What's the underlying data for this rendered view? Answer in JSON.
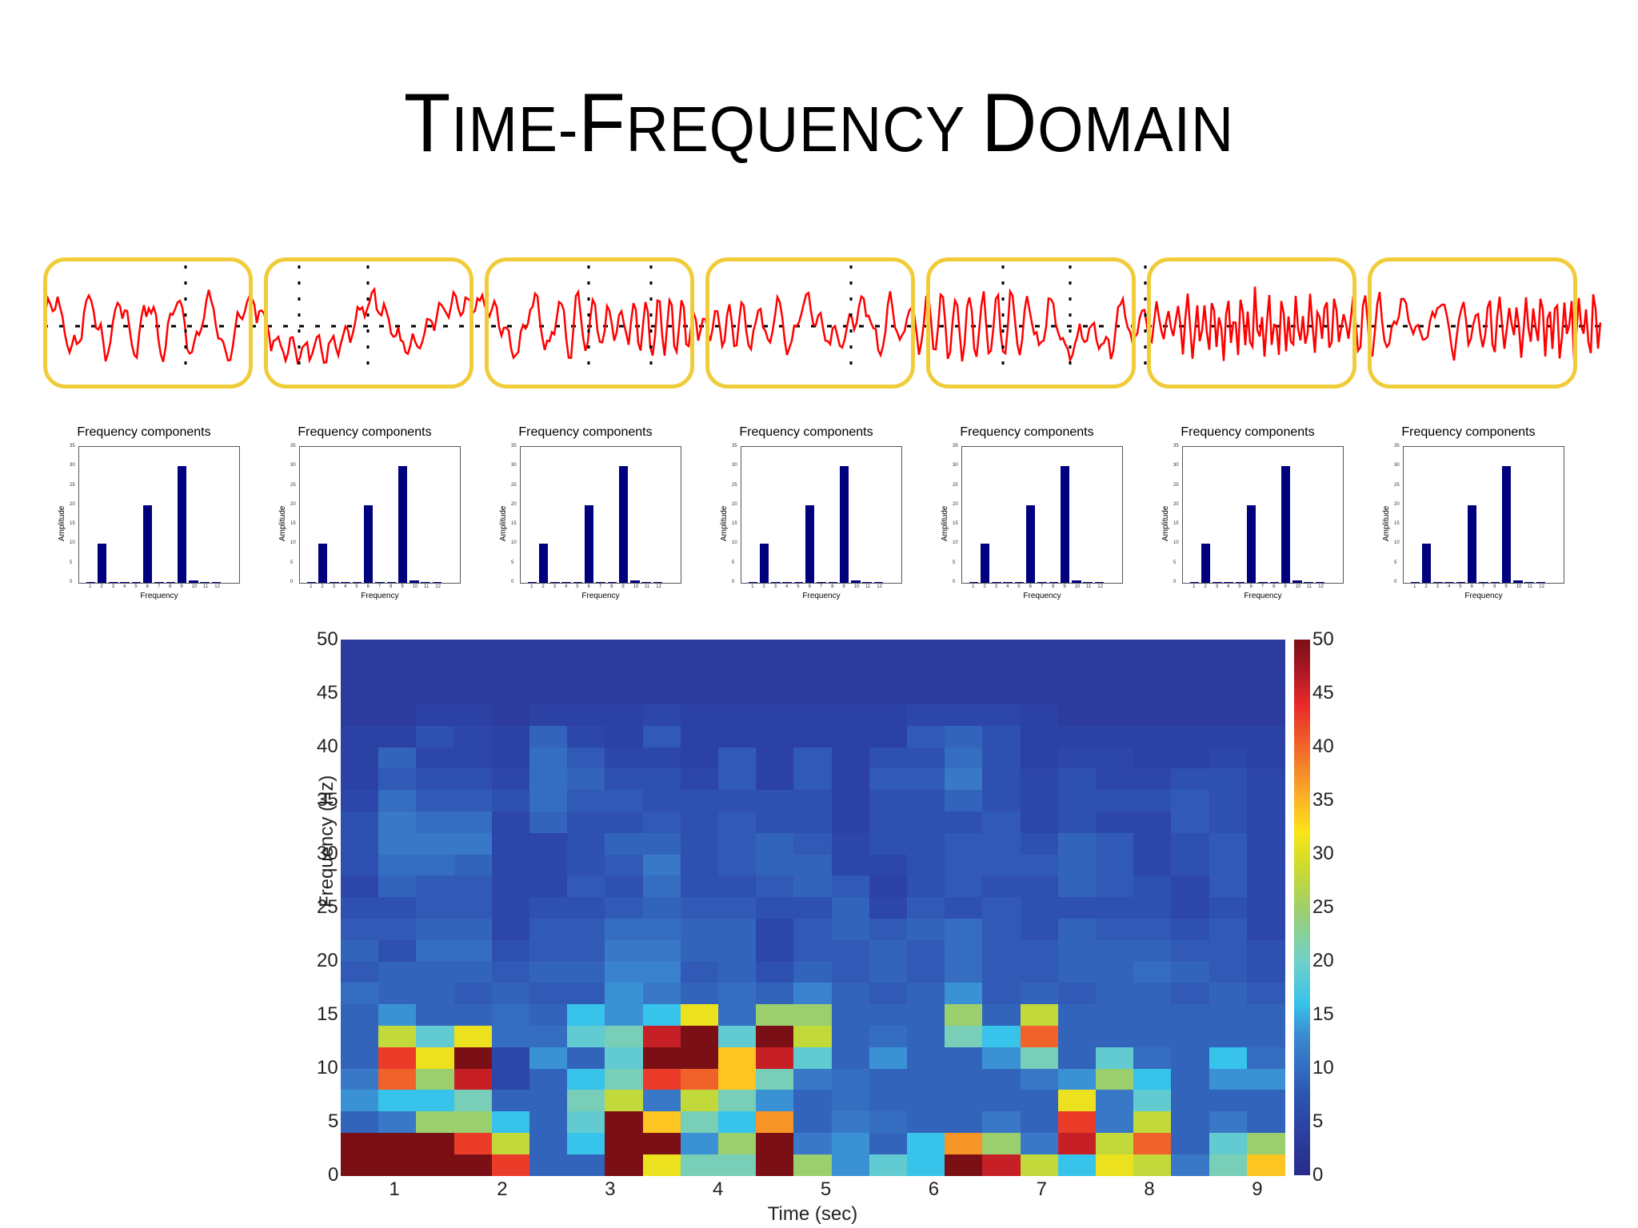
{
  "slide": {
    "title_parts": [
      {
        "text": "T",
        "size": "big"
      },
      {
        "text": "IME-",
        "size": "small"
      },
      {
        "text": "F",
        "size": "big"
      },
      {
        "text": "REQUENCY ",
        "size": "small"
      },
      {
        "text": "D",
        "size": "big"
      },
      {
        "text": "OMAIN",
        "size": "small"
      }
    ],
    "title": "Time-Frequency Domain",
    "window_count": 7,
    "box_color": "#f0cc3a",
    "signal_color": "#ff0000"
  },
  "chart_data": [
    {
      "type": "bar",
      "repeat": 7,
      "title": "Frequency components",
      "xlabel": "Frequency",
      "ylabel": "Amplitude",
      "categories": [
        "1",
        "2",
        "3",
        "4",
        "5",
        "6",
        "7",
        "8",
        "9",
        "10",
        "11",
        "12"
      ],
      "values": [
        0.1,
        10,
        0.1,
        0.2,
        0.3,
        20,
        0.1,
        0.3,
        30,
        0.6,
        0.3,
        0.2
      ],
      "ylim": [
        0,
        35
      ],
      "yticks": [
        0,
        5,
        10,
        15,
        20,
        25,
        30,
        35
      ],
      "bar_color": "#00007f"
    },
    {
      "type": "heatmap",
      "title": "",
      "xlabel": "Time (sec)",
      "ylabel": "Frequency (Hz)",
      "xlim": [
        0.5,
        9.25
      ],
      "ylim": [
        0,
        50
      ],
      "xticks": [
        1,
        2,
        3,
        4,
        5,
        6,
        7,
        8,
        9
      ],
      "yticks": [
        0,
        5,
        10,
        15,
        20,
        25,
        30,
        35,
        40,
        45,
        50
      ],
      "colorbar": {
        "min": 0,
        "max": 50,
        "ticks": [
          0,
          5,
          10,
          15,
          20,
          25,
          30,
          35,
          40,
          45,
          50
        ],
        "colormap": "jet-like"
      },
      "n_time_bins": 25,
      "freq_bin_hz": 2,
      "rows_bottom_up": [
        [
          50,
          50,
          50,
          50,
          42,
          9,
          9,
          50,
          31,
          21,
          21,
          50,
          25,
          13,
          19,
          16,
          50,
          45,
          28,
          16,
          31,
          28,
          11,
          21,
          34
        ],
        [
          50,
          50,
          50,
          42,
          28,
          9,
          16,
          50,
          50,
          13,
          25,
          50,
          11,
          13,
          9,
          16,
          37,
          25,
          11,
          45,
          28,
          40,
          9,
          19,
          25
        ],
        [
          9,
          11,
          25,
          25,
          16,
          9,
          19,
          50,
          34,
          21,
          16,
          37,
          9,
          11,
          10,
          9,
          9,
          11,
          9,
          42,
          11,
          28,
          9,
          11,
          9
        ],
        [
          13,
          16,
          16,
          21,
          9,
          9,
          21,
          28,
          11,
          28,
          21,
          13,
          9,
          10,
          9,
          9,
          9,
          9,
          9,
          31,
          11,
          19,
          9,
          9,
          9
        ],
        [
          11,
          40,
          25,
          45,
          6,
          9,
          16,
          21,
          42,
          40,
          34,
          21,
          11,
          10,
          9,
          9,
          9,
          9,
          11,
          13,
          25,
          16,
          9,
          13,
          13
        ],
        [
          9,
          42,
          31,
          50,
          6,
          13,
          9,
          19,
          50,
          50,
          34,
          45,
          19,
          9,
          13,
          9,
          9,
          13,
          21,
          9,
          19,
          10,
          9,
          16,
          10
        ],
        [
          9,
          28,
          19,
          31,
          10,
          10,
          19,
          21,
          45,
          50,
          19,
          50,
          28,
          9,
          10,
          9,
          21,
          16,
          40,
          9,
          9,
          9,
          9,
          9,
          9
        ],
        [
          9,
          13,
          9,
          9,
          10,
          9,
          16,
          13,
          16,
          31,
          10,
          25,
          25,
          9,
          9,
          9,
          25,
          9,
          28,
          9,
          9,
          9,
          9,
          9,
          9
        ],
        [
          10,
          9,
          9,
          8,
          9,
          8,
          8,
          13,
          11,
          9,
          10,
          9,
          12,
          9,
          8,
          9,
          13,
          8,
          9,
          8,
          9,
          9,
          8,
          9,
          8
        ],
        [
          8,
          9,
          9,
          9,
          8,
          9,
          9,
          12,
          12,
          8,
          9,
          7,
          9,
          8,
          9,
          8,
          10,
          8,
          8,
          9,
          9,
          10,
          9,
          8,
          7
        ],
        [
          9,
          7,
          10,
          10,
          7,
          8,
          8,
          11,
          11,
          9,
          9,
          6,
          8,
          8,
          9,
          8,
          10,
          8,
          8,
          9,
          9,
          9,
          8,
          8,
          7
        ],
        [
          8,
          8,
          9,
          9,
          6,
          8,
          8,
          10,
          10,
          9,
          9,
          6,
          8,
          9,
          8,
          9,
          10,
          8,
          7,
          9,
          8,
          8,
          7,
          8,
          6
        ],
        [
          7,
          7,
          8,
          8,
          6,
          7,
          7,
          8,
          9,
          8,
          8,
          7,
          7,
          9,
          6,
          8,
          7,
          8,
          7,
          7,
          7,
          7,
          6,
          7,
          6
        ],
        [
          6,
          9,
          8,
          8,
          6,
          6,
          8,
          7,
          10,
          7,
          7,
          8,
          9,
          8,
          5,
          7,
          8,
          7,
          7,
          9,
          8,
          7,
          6,
          8,
          6
        ],
        [
          7,
          10,
          10,
          9,
          6,
          6,
          7,
          8,
          11,
          7,
          8,
          9,
          9,
          6,
          6,
          7,
          8,
          8,
          8,
          9,
          8,
          6,
          7,
          8,
          6
        ],
        [
          7,
          11,
          11,
          11,
          6,
          6,
          7,
          9,
          9,
          7,
          8,
          9,
          8,
          6,
          7,
          7,
          8,
          8,
          7,
          9,
          8,
          6,
          7,
          8,
          6
        ],
        [
          7,
          11,
          10,
          10,
          6,
          9,
          7,
          7,
          8,
          7,
          8,
          7,
          7,
          5,
          7,
          7,
          7,
          8,
          6,
          7,
          6,
          6,
          8,
          7,
          6
        ],
        [
          6,
          10,
          8,
          8,
          7,
          10,
          8,
          8,
          7,
          7,
          7,
          7,
          7,
          5,
          7,
          7,
          9,
          7,
          6,
          7,
          7,
          7,
          8,
          7,
          6
        ],
        [
          5,
          8,
          7,
          7,
          6,
          10,
          9,
          7,
          7,
          6,
          8,
          5,
          8,
          5,
          8,
          8,
          11,
          7,
          6,
          7,
          6,
          6,
          7,
          7,
          6
        ],
        [
          5,
          9,
          6,
          6,
          5,
          10,
          8,
          6,
          6,
          5,
          8,
          5,
          8,
          5,
          7,
          7,
          10,
          7,
          5,
          6,
          6,
          5,
          5,
          6,
          5
        ],
        [
          5,
          5,
          7,
          6,
          5,
          9,
          6,
          5,
          8,
          5,
          5,
          5,
          5,
          5,
          5,
          8,
          9,
          7,
          5,
          5,
          5,
          5,
          5,
          5,
          5
        ],
        [
          4,
          4,
          5,
          5,
          4,
          5,
          5,
          5,
          6,
          5,
          5,
          5,
          5,
          5,
          5,
          6,
          6,
          6,
          5,
          4,
          4,
          4,
          4,
          4,
          4
        ],
        [
          4,
          4,
          4,
          4,
          4,
          4,
          4,
          4,
          4,
          4,
          4,
          4,
          4,
          4,
          4,
          4,
          4,
          4,
          4,
          4,
          4,
          4,
          4,
          4,
          4
        ],
        [
          4,
          4,
          4,
          4,
          4,
          4,
          4,
          4,
          4,
          4,
          4,
          4,
          4,
          4,
          4,
          4,
          4,
          4,
          4,
          4,
          4,
          4,
          4,
          4,
          4
        ],
        [
          4,
          4,
          4,
          4,
          4,
          4,
          4,
          4,
          4,
          4,
          4,
          4,
          4,
          4,
          4,
          4,
          4,
          4,
          4,
          4,
          4,
          4,
          4,
          4,
          4
        ]
      ]
    }
  ]
}
